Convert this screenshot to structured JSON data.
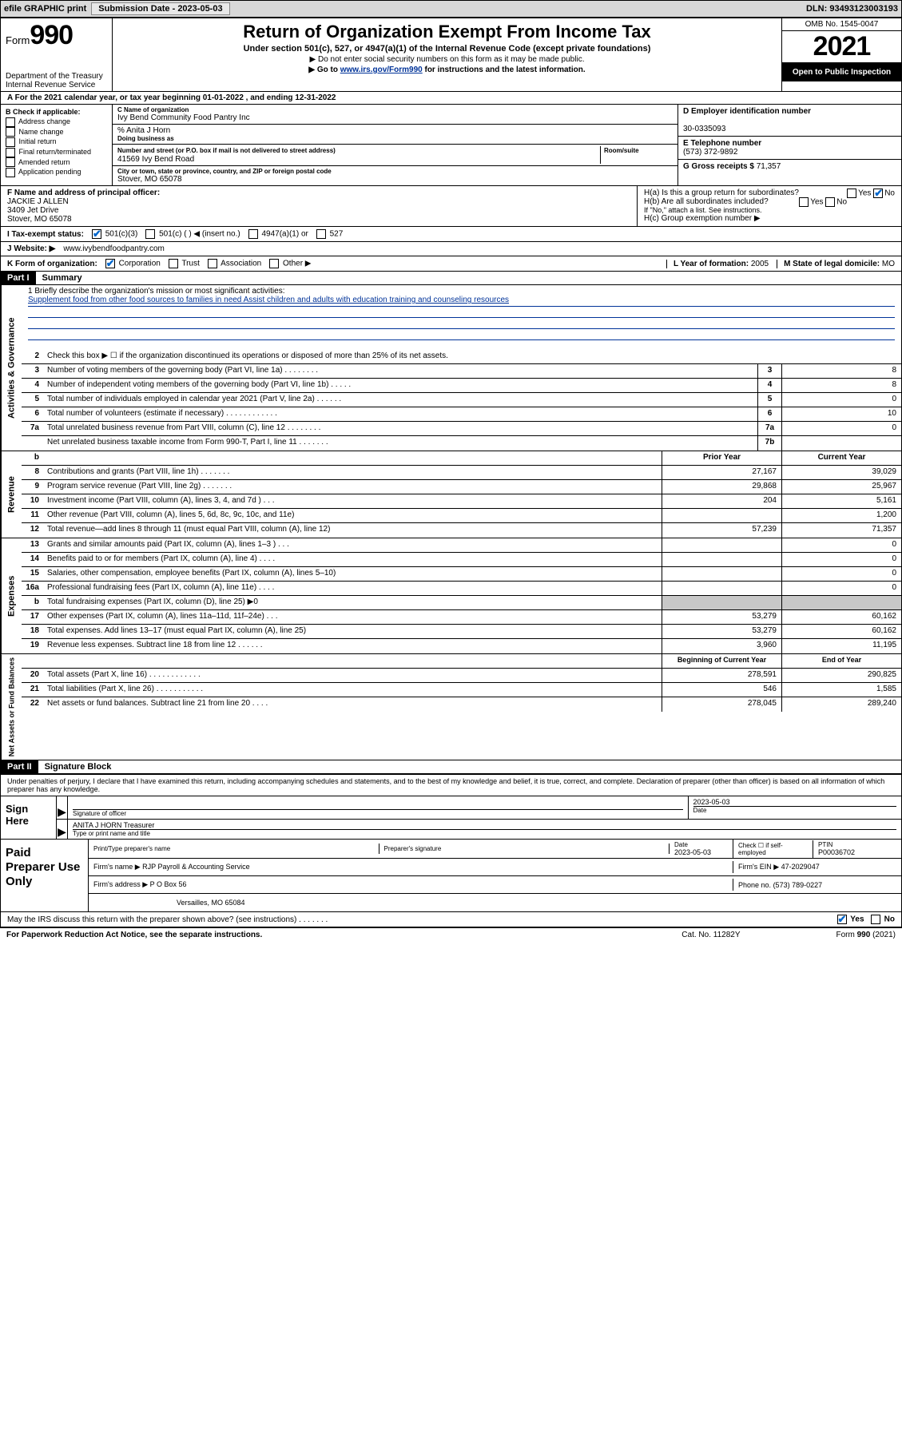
{
  "topbar": {
    "efile_label": "efile GRAPHIC print",
    "sub_label": "Submission Date - 2023-05-03",
    "dln_label": "DLN: 93493123003193"
  },
  "header": {
    "form_prefix": "Form",
    "form_number": "990",
    "dept": "Department of the Treasury",
    "irs": "Internal Revenue Service",
    "title": "Return of Organization Exempt From Income Tax",
    "subtitle": "Under section 501(c), 527, or 4947(a)(1) of the Internal Revenue Code (except private foundations)",
    "note1": "▶ Do not enter social security numbers on this form as it may be made public.",
    "note2_pre": "▶ Go to ",
    "note2_link": "www.irs.gov/Form990",
    "note2_post": " for instructions and the latest information.",
    "omb": "OMB No. 1545-0047",
    "year": "2021",
    "open": "Open to Public Inspection"
  },
  "period": {
    "text": "A For the 2021 calendar year, or tax year beginning 01-01-2022    , and ending 12-31-2022"
  },
  "colB": {
    "hdr": "B Check if applicable:",
    "items": [
      "Address change",
      "Name change",
      "Initial return",
      "Final return/terminated",
      "Amended return",
      "Application pending"
    ]
  },
  "colC": {
    "name_lab": "C Name of organization",
    "name": "Ivy Bend Community Food Pantry Inc",
    "care_lab": "% Anita J Horn",
    "dba_lab": "Doing business as",
    "street_lab": "Number and street (or P.O. box if mail is not delivered to street address)",
    "street": "41569 Ivy Bend Road",
    "room_lab": "Room/suite",
    "city_lab": "City or town, state or province, country, and ZIP or foreign postal code",
    "city": "Stover, MO  65078"
  },
  "colD": {
    "ein_lab": "D Employer identification number",
    "ein": "30-0335093",
    "tel_lab": "E Telephone number",
    "tel": "(573) 372-9892",
    "gross_lab": "G Gross receipts $",
    "gross": "71,357"
  },
  "rowF": {
    "lab": "F Name and address of principal officer:",
    "name": "JACKIE J ALLEN",
    "addr1": "3409 Jet Drive",
    "addr2": "Stover, MO  65078"
  },
  "rowH": {
    "ha": "H(a)  Is this a group return for subordinates?",
    "hb": "H(b)  Are all subordinates included?",
    "hb_note": "If \"No,\" attach a list. See instructions.",
    "hc": "H(c)  Group exemption number ▶",
    "yes": "Yes",
    "no": "No"
  },
  "rowI": {
    "lab": "I   Tax-exempt status:",
    "opts": [
      "501(c)(3)",
      "501(c) (  ) ◀ (insert no.)",
      "4947(a)(1) or",
      "527"
    ]
  },
  "rowJ": {
    "lab": "J   Website: ▶",
    "val": "www.ivybendfoodpantry.com"
  },
  "rowK": {
    "lab": "K Form of organization:",
    "opts": [
      "Corporation",
      "Trust",
      "Association",
      "Other ▶"
    ]
  },
  "rowL": {
    "lab": "L Year of formation:",
    "val": "2005"
  },
  "rowM": {
    "lab": "M State of legal domicile:",
    "val": "MO"
  },
  "part1": {
    "hdr": "Part I",
    "title": "Summary"
  },
  "mission": {
    "lab": "1   Briefly describe the organization's mission or most significant activities:",
    "text": "Supplement food from other food sources to families in need Assist children and adults with education training and counseling resources"
  },
  "lines_ag": [
    {
      "n": "2",
      "d": "Check this box ▶ ☐  if the organization discontinued its operations or disposed of more than 25% of its net assets."
    },
    {
      "n": "3",
      "d": "Number of voting members of the governing body (Part VI, line 1a)   .     .     .     .     .     .     .     .",
      "box": "3",
      "v": "8"
    },
    {
      "n": "4",
      "d": "Number of independent voting members of the governing body (Part VI, line 1b)    .     .     .     .     .",
      "box": "4",
      "v": "8"
    },
    {
      "n": "5",
      "d": "Total number of individuals employed in calendar year 2021 (Part V, line 2a)    .     .     .     .     .     .",
      "box": "5",
      "v": "0"
    },
    {
      "n": "6",
      "d": "Total number of volunteers (estimate if necessary)   .     .     .     .     .     .     .     .     .     .     .     .",
      "box": "6",
      "v": "10"
    },
    {
      "n": "7a",
      "d": "Total unrelated business revenue from Part VIII, column (C), line 12   .     .     .     .     .     .     .     .",
      "box": "7a",
      "v": "0"
    },
    {
      "n": "",
      "d": "Net unrelated business taxable income from Form 990-T, Part I, line 11   .     .     .     .     .     .     .",
      "box": "7b",
      "v": ""
    }
  ],
  "col_hdrs": {
    "prior": "Prior Year",
    "current": "Current Year"
  },
  "revenue": [
    {
      "n": "8",
      "d": "Contributions and grants (Part VIII, line 1h)   .     .     .     .     .     .     .",
      "p": "27,167",
      "c": "39,029"
    },
    {
      "n": "9",
      "d": "Program service revenue (Part VIII, line 2g)   .     .     .     .     .     .     .",
      "p": "29,868",
      "c": "25,967"
    },
    {
      "n": "10",
      "d": "Investment income (Part VIII, column (A), lines 3, 4, and 7d )   .     .     .",
      "p": "204",
      "c": "5,161"
    },
    {
      "n": "11",
      "d": "Other revenue (Part VIII, column (A), lines 5, 6d, 8c, 9c, 10c, and 11e)",
      "p": "",
      "c": "1,200"
    },
    {
      "n": "12",
      "d": "Total revenue—add lines 8 through 11 (must equal Part VIII, column (A), line 12)",
      "p": "57,239",
      "c": "71,357"
    }
  ],
  "expenses": [
    {
      "n": "13",
      "d": "Grants and similar amounts paid (Part IX, column (A), lines 1–3 )   .     .     .",
      "p": "",
      "c": "0"
    },
    {
      "n": "14",
      "d": "Benefits paid to or for members (Part IX, column (A), line 4)   .     .     .     .",
      "p": "",
      "c": "0"
    },
    {
      "n": "15",
      "d": "Salaries, other compensation, employee benefits (Part IX, column (A), lines 5–10)",
      "p": "",
      "c": "0"
    },
    {
      "n": "16a",
      "d": "Professional fundraising fees (Part IX, column (A), line 11e)   .     .     .     .",
      "p": "",
      "c": "0"
    },
    {
      "n": "b",
      "d": "Total fundraising expenses (Part IX, column (D), line 25) ▶0",
      "p": "SHADE",
      "c": "SHADE"
    },
    {
      "n": "17",
      "d": "Other expenses (Part IX, column (A), lines 11a–11d, 11f–24e)   .     .     .",
      "p": "53,279",
      "c": "60,162"
    },
    {
      "n": "18",
      "d": "Total expenses. Add lines 13–17 (must equal Part IX, column (A), line 25)",
      "p": "53,279",
      "c": "60,162"
    },
    {
      "n": "19",
      "d": "Revenue less expenses. Subtract line 18 from line 12   .     .     .     .     .     .",
      "p": "3,960",
      "c": "11,195"
    }
  ],
  "na_hdrs": {
    "beg": "Beginning of Current Year",
    "end": "End of Year"
  },
  "netassets": [
    {
      "n": "20",
      "d": "Total assets (Part X, line 16)   .     .     .     .     .     .     .     .     .     .     .     .",
      "p": "278,591",
      "c": "290,825"
    },
    {
      "n": "21",
      "d": "Total liabilities (Part X, line 26)   .     .     .     .     .     .     .     .     .     .     .",
      "p": "546",
      "c": "1,585"
    },
    {
      "n": "22",
      "d": "Net assets or fund balances. Subtract line 21 from line 20   .     .     .     .",
      "p": "278,045",
      "c": "289,240"
    }
  ],
  "vtabs": {
    "ag": "Activities & Governance",
    "rev": "Revenue",
    "exp": "Expenses",
    "na": "Net Assets or Fund Balances"
  },
  "part2": {
    "hdr": "Part II",
    "title": "Signature Block"
  },
  "sig": {
    "declare": "Under penalties of perjury, I declare that I have examined this return, including accompanying schedules and statements, and to the best of my knowledge and belief, it is true, correct, and complete. Declaration of preparer (other than officer) is based on all information of which preparer has any knowledge.",
    "sign_here": "Sign Here",
    "sig_of": "Signature of officer",
    "date": "2023-05-03",
    "date_lab": "Date",
    "name": "ANITA J HORN Treasurer",
    "name_lab": "Type or print name and title"
  },
  "paid": {
    "hdr": "Paid Preparer Use Only",
    "col1": "Print/Type preparer's name",
    "col2": "Preparer's signature",
    "col3_lab": "Date",
    "col3": "2023-05-03",
    "col4_lab": "Check ☐ if self-employed",
    "col5_lab": "PTIN",
    "col5": "P00036702",
    "firm_name_lab": "Firm's name      ▶",
    "firm_name": "RJP Payroll & Accounting Service",
    "firm_ein_lab": "Firm's EIN ▶",
    "firm_ein": "47-2029047",
    "firm_addr_lab": "Firm's address ▶",
    "firm_addr1": "P O Box 56",
    "firm_addr2": "Versailles, MO  65084",
    "phone_lab": "Phone no.",
    "phone": "(573) 789-0227"
  },
  "discuss": {
    "q": "May the IRS discuss this return with the preparer shown above? (see instructions)   .     .     .     .     .     .     .",
    "yes": "Yes",
    "no": "No"
  },
  "footer": {
    "left": "For Paperwork Reduction Act Notice, see the separate instructions.",
    "mid": "Cat. No. 11282Y",
    "right": "Form 990 (2021)"
  }
}
